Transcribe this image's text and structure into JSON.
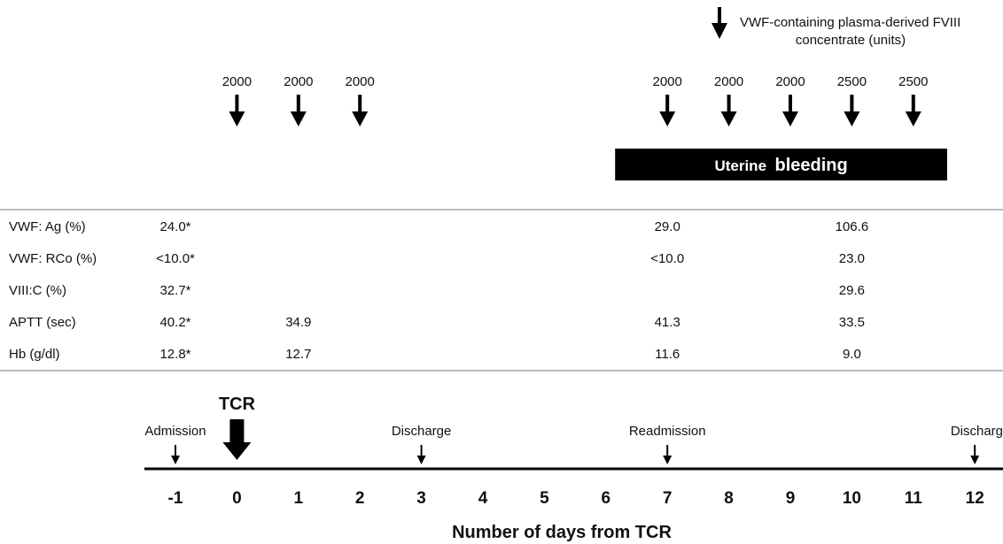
{
  "legend": {
    "line1": "VWF-containing plasma-derived  FVIII",
    "line2": "concentrate  (units)"
  },
  "doses": [
    {
      "day": 0,
      "units": "2000"
    },
    {
      "day": 1,
      "units": "2000"
    },
    {
      "day": 2,
      "units": "2000"
    },
    {
      "day": 7,
      "units": "2000"
    },
    {
      "day": 8,
      "units": "2000"
    },
    {
      "day": 9,
      "units": "2000"
    },
    {
      "day": 10,
      "units": "2500"
    },
    {
      "day": 11,
      "units": "2500"
    }
  ],
  "bleeding": {
    "label_a": "Uterine",
    "label_b": "bleeding",
    "start_day": 6.15,
    "end_day": 11.55
  },
  "table": {
    "rows": [
      {
        "label": "VWF: Ag (%)",
        "cells": [
          {
            "day": -1,
            "text": "24.0*"
          },
          {
            "day": 7,
            "text": "29.0"
          },
          {
            "day": 10,
            "text": "106.6"
          }
        ]
      },
      {
        "label": "VWF: RCo (%)",
        "cells": [
          {
            "day": -1,
            "text": "<10.0*"
          },
          {
            "day": 7,
            "text": "<10.0"
          },
          {
            "day": 10,
            "text": "23.0"
          }
        ]
      },
      {
        "label": "VIII:C (%)",
        "cells": [
          {
            "day": -1,
            "text": "32.7*"
          },
          {
            "day": 10,
            "text": "29.6"
          }
        ]
      },
      {
        "label": "APTT (sec)",
        "cells": [
          {
            "day": -1,
            "text": "40.2*"
          },
          {
            "day": 1,
            "text": "34.9"
          },
          {
            "day": 7,
            "text": "41.3"
          },
          {
            "day": 10,
            "text": "33.5"
          }
        ]
      },
      {
        "label": "Hb (g/dl)",
        "cells": [
          {
            "day": -1,
            "text": "12.8*"
          },
          {
            "day": 1,
            "text": "12.7"
          },
          {
            "day": 7,
            "text": "11.6"
          },
          {
            "day": 10,
            "text": "9.0"
          }
        ]
      }
    ]
  },
  "timeline": {
    "ticks": [
      "-1",
      "0",
      "1",
      "2",
      "3",
      "4",
      "5",
      "6",
      "7",
      "8",
      "9",
      "10",
      "11",
      "12"
    ],
    "xlabel": "Number of days from TCR",
    "events": [
      {
        "day": -1,
        "label": "Admission"
      },
      {
        "day": 3,
        "label": "Discharge"
      },
      {
        "day": 7,
        "label": "Readmission"
      },
      {
        "day": 12,
        "label": "Discharg"
      }
    ],
    "surgery": {
      "day": 0,
      "label": "TCR"
    }
  }
}
